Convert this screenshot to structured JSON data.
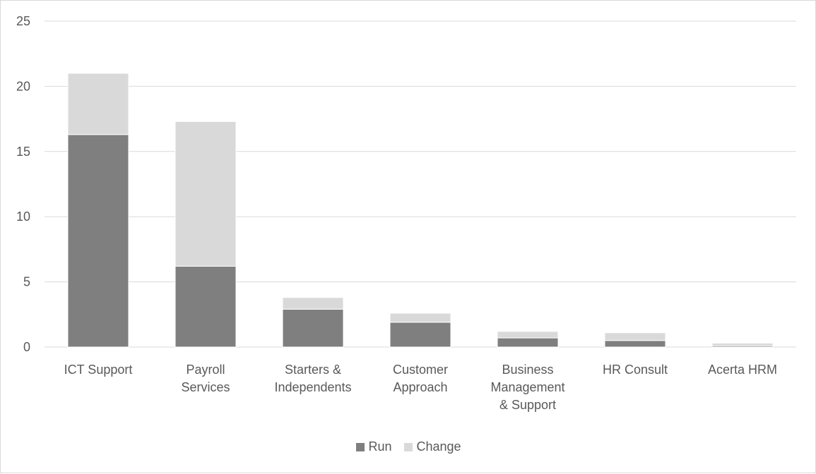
{
  "chart_data": {
    "type": "bar",
    "stacked": true,
    "title": "",
    "xlabel": "",
    "ylabel": "",
    "ylim": [
      0,
      25
    ],
    "yticks": [
      0,
      5,
      10,
      15,
      20,
      25
    ],
    "grid": true,
    "legend_position": "bottom",
    "categories": [
      [
        "ICT Support"
      ],
      [
        "Payroll",
        "Services"
      ],
      [
        "Starters &",
        "Independents"
      ],
      [
        "Customer",
        "Approach"
      ],
      [
        "Business",
        "Management",
        "& Support"
      ],
      [
        "HR Consult"
      ],
      [
        "Acerta HRM"
      ]
    ],
    "series": [
      {
        "name": "Run",
        "color": "#7f7f7f",
        "values": [
          16.3,
          6.2,
          2.9,
          1.9,
          0.7,
          0.5,
          0.1
        ]
      },
      {
        "name": "Change",
        "color": "#d9d9d9",
        "values": [
          4.7,
          11.1,
          0.9,
          0.7,
          0.5,
          0.6,
          0.2
        ]
      }
    ]
  }
}
